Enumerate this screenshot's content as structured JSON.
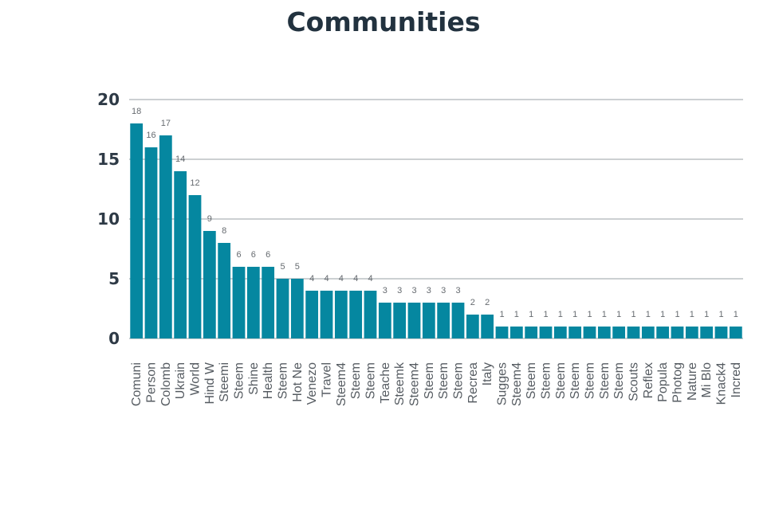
{
  "chart_data": {
    "type": "bar",
    "title": "Communities",
    "xlabel": "",
    "ylabel": "",
    "ylim": [
      0,
      20
    ],
    "yticks": [
      0,
      5,
      10,
      15,
      20
    ],
    "grid": true,
    "bar_color": "#0587a0",
    "categories": [
      "Comuni",
      "Person",
      "Colomb",
      "Ukrain",
      "World",
      "Hind W",
      "Steemi",
      "Steem",
      "Shine",
      "Health",
      "Steem",
      "Hot Ne",
      "Venezo",
      "Travel",
      "Steem4",
      "Steem",
      "Steem",
      "Teache",
      "Steemk",
      "Steem4",
      "Steem",
      "Steem",
      "Steem",
      "Recrea",
      "Italy",
      "Sugges",
      "Steem4",
      "Steem",
      "Steem",
      "Steem",
      "Steem",
      "Steem",
      "Steem",
      "Steem",
      "Scouts",
      "Reflex",
      "Popula",
      "Photog",
      "Nature",
      "Mi Blo",
      "Knack4",
      "Incred"
    ],
    "values": [
      18,
      16,
      17,
      14,
      12,
      9,
      8,
      6,
      6,
      6,
      5,
      5,
      4,
      4,
      4,
      4,
      4,
      3,
      3,
      3,
      3,
      3,
      3,
      2,
      2,
      1,
      1,
      1,
      1,
      1,
      1,
      1,
      1,
      1,
      1,
      1,
      1,
      1,
      1,
      1,
      1,
      1
    ]
  }
}
